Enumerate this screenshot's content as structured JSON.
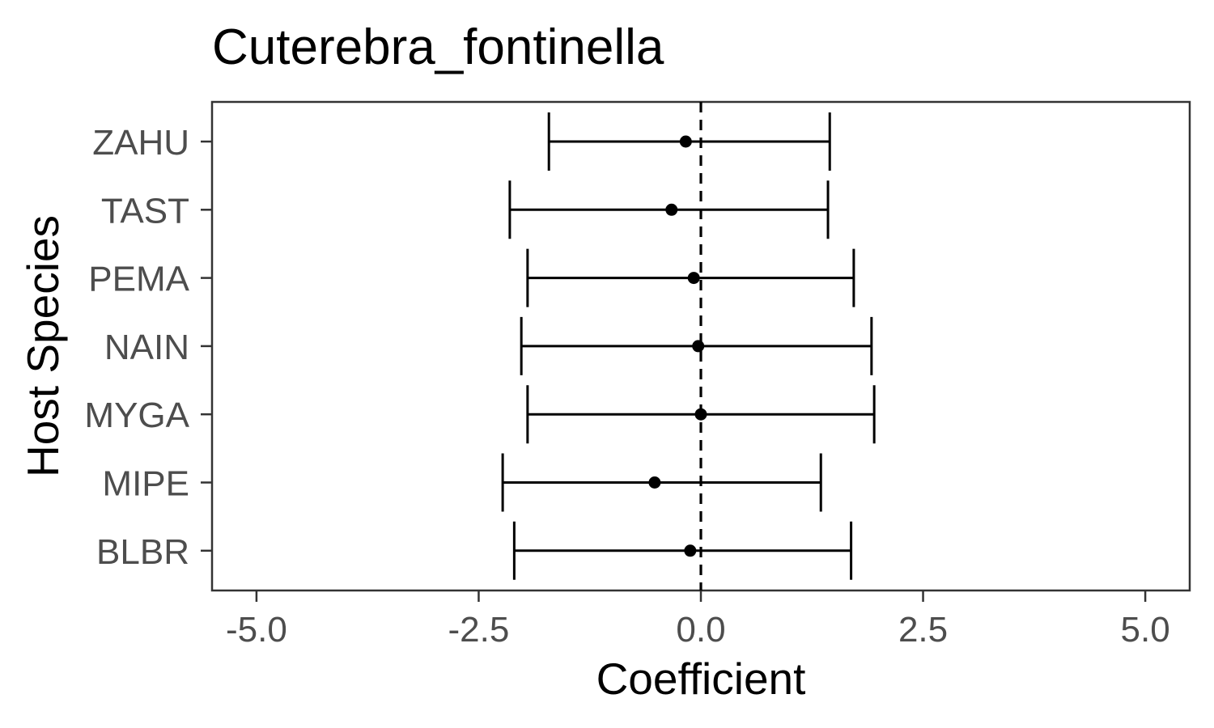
{
  "chart_data": {
    "type": "scatter",
    "title": "Cuterebra_fontinella",
    "xlabel": "Coefficient",
    "ylabel": "Host Species",
    "xlim": [
      -5.5,
      5.5
    ],
    "x_ticks": [
      -5.0,
      -2.5,
      0.0,
      2.5,
      5.0
    ],
    "x_tick_labels": [
      "-5.0",
      "-2.5",
      "0.0",
      "2.5",
      "5.0"
    ],
    "categories": [
      "ZAHU",
      "TAST",
      "PEMA",
      "NAIN",
      "MYGA",
      "MIPE",
      "BLBR"
    ],
    "series": [
      {
        "estimate": [
          -0.17,
          -0.33,
          -0.08,
          -0.03,
          0.0,
          -0.52,
          -0.12
        ],
        "lower": [
          -1.71,
          -2.15,
          -1.95,
          -2.02,
          -1.95,
          -2.23,
          -2.1
        ],
        "upper": [
          1.45,
          1.43,
          1.72,
          1.92,
          1.95,
          1.35,
          1.69
        ]
      }
    ],
    "reference_line": {
      "x": 0.0,
      "style": "dashed"
    },
    "grid": false,
    "legend": "none",
    "colors": {
      "points": "#000000",
      "tick_label": "#4d4d4d",
      "frame": "#333333"
    }
  }
}
